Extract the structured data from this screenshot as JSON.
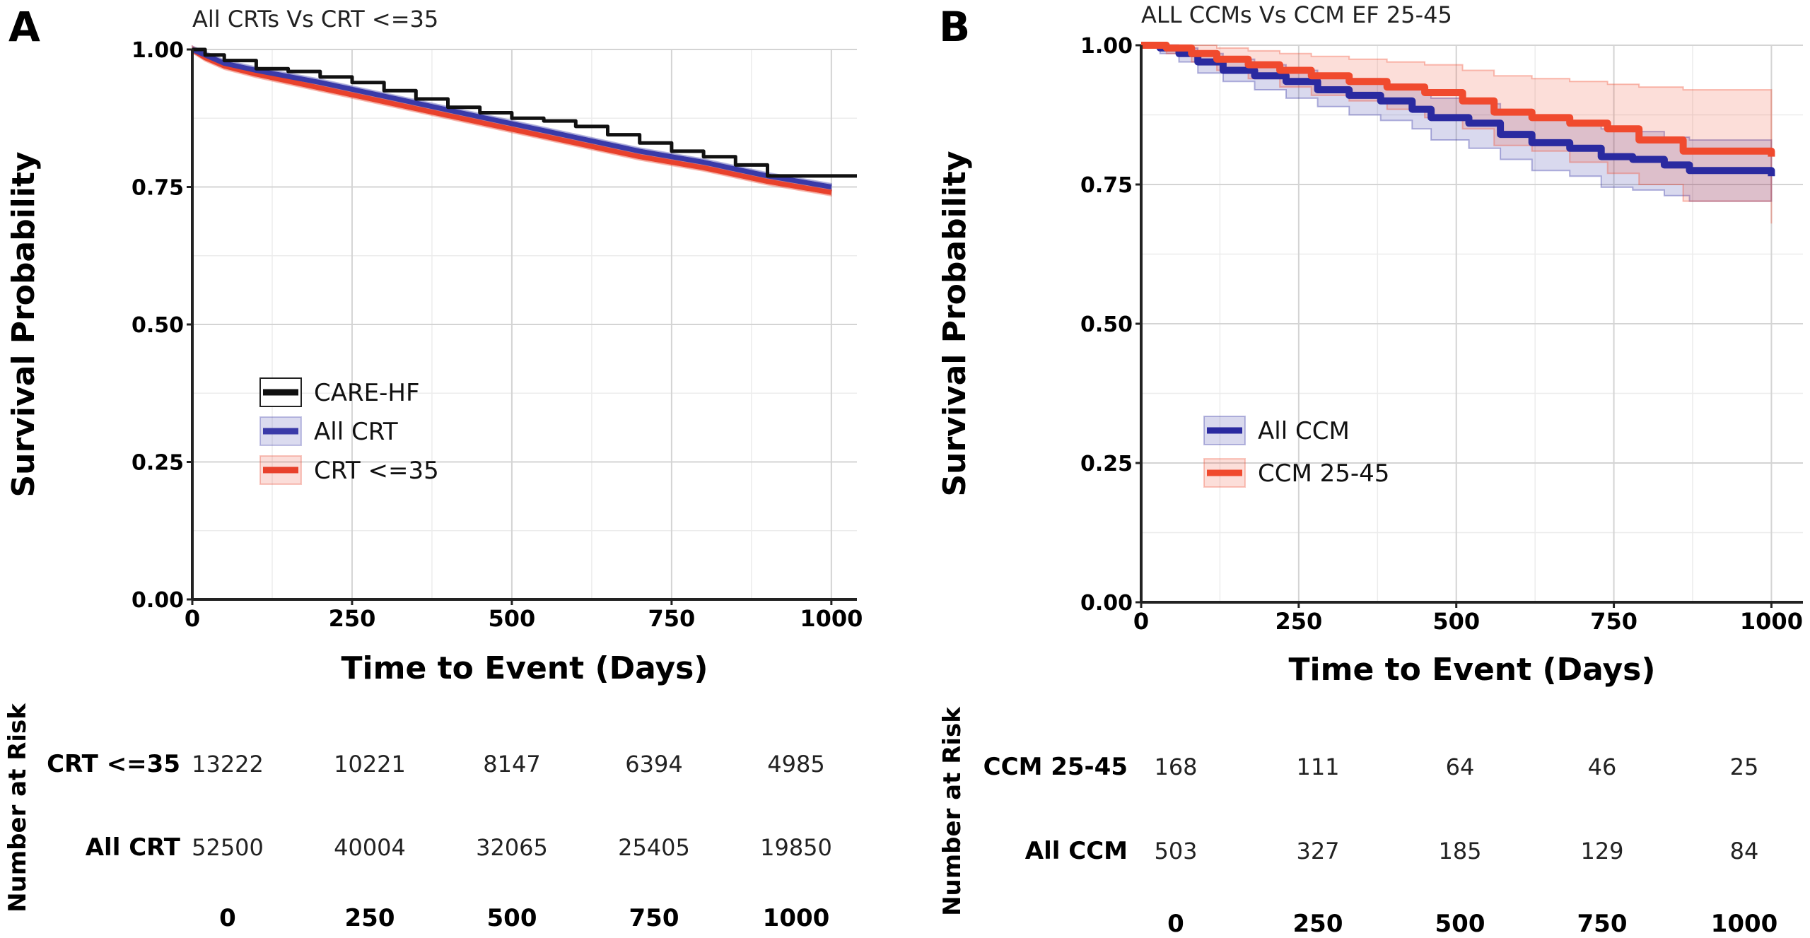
{
  "chart_data": [
    {
      "type": "line",
      "panel": "A",
      "title": "All CRTs Vs CRT <=35",
      "xlabel": "Time to Event (Days)",
      "ylabel": "Survival Probability",
      "xlim": [
        0,
        1040
      ],
      "ylim": [
        0,
        1
      ],
      "xticks": [
        "0",
        "250",
        "500",
        "750",
        "1000"
      ],
      "yticks": [
        "0.00",
        "0.25",
        "0.50",
        "0.75",
        "1.00"
      ],
      "grid": true,
      "legend_position": "center-left",
      "series": [
        {
          "name": "CARE-HF",
          "color": "#111111",
          "step": true,
          "band": false,
          "x": [
            0,
            20,
            50,
            100,
            150,
            200,
            250,
            300,
            350,
            400,
            450,
            500,
            550,
            600,
            650,
            700,
            750,
            800,
            850,
            900,
            950,
            1000,
            1040
          ],
          "y": [
            1.0,
            0.99,
            0.98,
            0.965,
            0.96,
            0.95,
            0.94,
            0.925,
            0.91,
            0.895,
            0.885,
            0.875,
            0.87,
            0.86,
            0.845,
            0.83,
            0.815,
            0.805,
            0.79,
            0.77,
            0.77,
            0.77,
            0.77
          ]
        },
        {
          "name": "All CRT",
          "color": "#3a3aa8",
          "step": false,
          "band": true,
          "x": [
            0,
            20,
            50,
            100,
            200,
            300,
            400,
            500,
            600,
            700,
            800,
            900,
            1000
          ],
          "y": [
            1.0,
            0.99,
            0.975,
            0.962,
            0.94,
            0.915,
            0.89,
            0.865,
            0.84,
            0.815,
            0.795,
            0.77,
            0.75
          ]
        },
        {
          "name": "CRT <=35",
          "color": "#e8412c",
          "step": false,
          "band": true,
          "x": [
            0,
            20,
            50,
            100,
            200,
            300,
            400,
            500,
            600,
            700,
            800,
            900,
            1000
          ],
          "y": [
            1.0,
            0.985,
            0.97,
            0.955,
            0.93,
            0.905,
            0.88,
            0.855,
            0.83,
            0.805,
            0.785,
            0.76,
            0.74
          ]
        }
      ],
      "risk_table": {
        "ylabel": "Number at Risk",
        "times": [
          "0",
          "250",
          "500",
          "750",
          "1000"
        ],
        "rows": [
          {
            "label": "CRT <=35",
            "values": [
              "13222",
              "10221",
              "8147",
              "6394",
              "4985"
            ]
          },
          {
            "label": "All CRT",
            "values": [
              "52500",
              "40004",
              "32065",
              "25405",
              "19850"
            ]
          }
        ]
      }
    },
    {
      "type": "line",
      "panel": "B",
      "title": "ALL CCMs Vs CCM EF 25-45",
      "xlabel": "Time to Event (Days)",
      "ylabel": "Survival Probability",
      "xlim": [
        0,
        1050
      ],
      "ylim": [
        0,
        1
      ],
      "xticks": [
        "0",
        "250",
        "500",
        "750",
        "1000"
      ],
      "yticks": [
        "0.00",
        "0.25",
        "0.50",
        "0.75",
        "1.00"
      ],
      "grid": true,
      "legend_position": "center-left",
      "series": [
        {
          "name": "All CCM",
          "color": "#2a2aa0",
          "step": true,
          "band": true,
          "x": [
            0,
            30,
            60,
            90,
            130,
            180,
            230,
            280,
            330,
            380,
            430,
            460,
            520,
            570,
            620,
            680,
            730,
            780,
            830,
            870,
            1000
          ],
          "y": [
            1.0,
            0.995,
            0.985,
            0.97,
            0.955,
            0.945,
            0.935,
            0.92,
            0.91,
            0.9,
            0.885,
            0.87,
            0.86,
            0.84,
            0.825,
            0.815,
            0.8,
            0.795,
            0.785,
            0.775,
            0.765
          ],
          "band_lo": [
            1.0,
            0.985,
            0.97,
            0.95,
            0.935,
            0.92,
            0.905,
            0.89,
            0.875,
            0.865,
            0.85,
            0.83,
            0.815,
            0.795,
            0.775,
            0.765,
            0.745,
            0.74,
            0.73,
            0.72,
            0.72
          ],
          "band_hi": [
            1.0,
            1.0,
            0.995,
            0.985,
            0.975,
            0.965,
            0.955,
            0.945,
            0.94,
            0.93,
            0.92,
            0.905,
            0.895,
            0.88,
            0.87,
            0.86,
            0.85,
            0.845,
            0.835,
            0.83,
            0.82
          ]
        },
        {
          "name": "CCM 25-45",
          "color": "#f04a2e",
          "step": true,
          "band": true,
          "x": [
            0,
            40,
            80,
            120,
            170,
            220,
            270,
            330,
            390,
            450,
            510,
            560,
            620,
            680,
            740,
            790,
            860,
            1000
          ],
          "y": [
            1.0,
            0.995,
            0.985,
            0.975,
            0.965,
            0.955,
            0.945,
            0.935,
            0.925,
            0.915,
            0.9,
            0.88,
            0.87,
            0.86,
            0.85,
            0.83,
            0.81,
            0.8
          ],
          "band_lo": [
            1.0,
            0.985,
            0.97,
            0.955,
            0.94,
            0.925,
            0.91,
            0.9,
            0.885,
            0.87,
            0.85,
            0.82,
            0.81,
            0.79,
            0.77,
            0.75,
            0.72,
            0.68
          ],
          "band_hi": [
            1.0,
            1.0,
            1.0,
            0.995,
            0.99,
            0.985,
            0.98,
            0.975,
            0.97,
            0.965,
            0.955,
            0.945,
            0.94,
            0.935,
            0.93,
            0.925,
            0.92,
            0.915
          ]
        }
      ],
      "risk_table": {
        "ylabel": "Number at Risk",
        "times": [
          "0",
          "250",
          "500",
          "750",
          "1000"
        ],
        "rows": [
          {
            "label": "CCM 25-45",
            "values": [
              "168",
              "111",
              "64",
              "46",
              "25"
            ]
          },
          {
            "label": "All CCM",
            "values": [
              "503",
              "327",
              "185",
              "129",
              "84"
            ]
          }
        ]
      }
    }
  ]
}
